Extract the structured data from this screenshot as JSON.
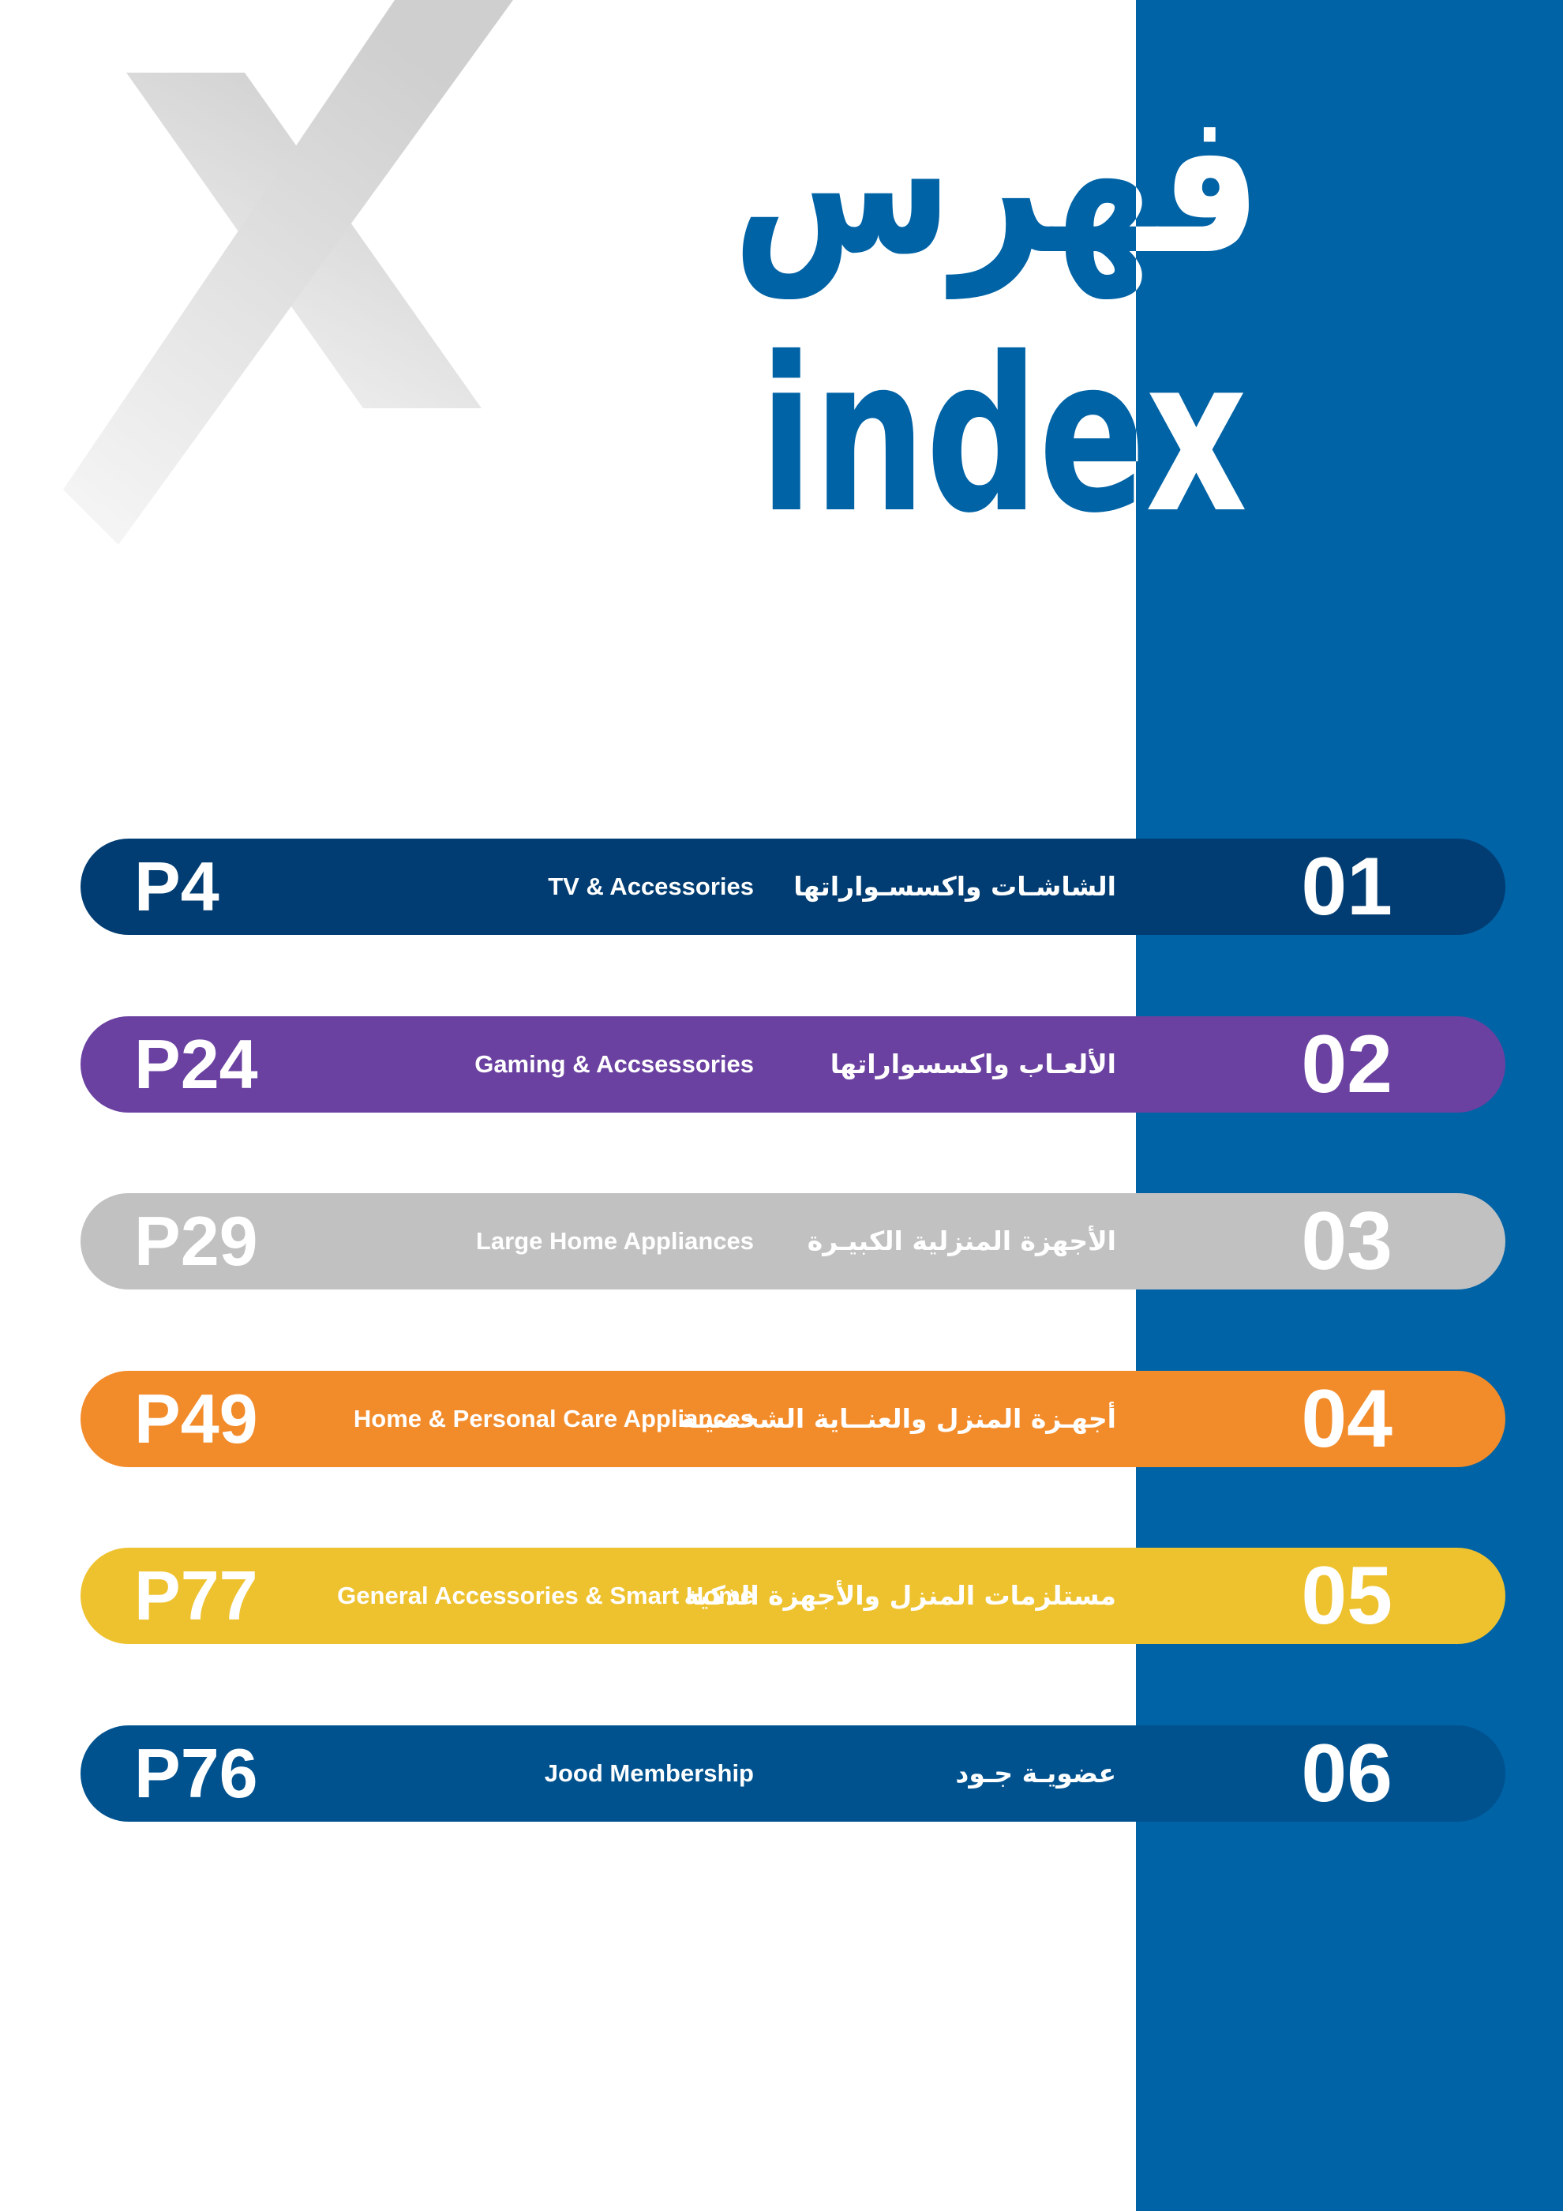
{
  "header": {
    "title_ar": "فهرس",
    "title_en": "index"
  },
  "items": [
    {
      "number": "01",
      "ar": "الشاشـات واكسسـواراتها",
      "en": "TV &  Accessories",
      "page": "P4",
      "color": "#013d72"
    },
    {
      "number": "02",
      "ar": "الألعـاب واكسسواراتها",
      "en": "Gaming & Accsessories",
      "page": "P24",
      "color": "#6a41a0"
    },
    {
      "number": "03",
      "ar": "الأجهزة المنزلية الكبيـرة",
      "en": "Large Home Appliances",
      "page": "P29",
      "color": "#c1c1c1"
    },
    {
      "number": "04",
      "ar": "أجهـزة المنزل والعنــاية الشخصيـة",
      "en": "Home & Personal Care Appliances",
      "page": "P49",
      "color": "#f28b2a"
    },
    {
      "number": "05",
      "ar": "مستلزمات المنزل والأجهزة الذكية",
      "en": "General Accessories & Smart Home",
      "page": "P77",
      "color": "#eec22f"
    },
    {
      "number": "06",
      "ar": "عضويـة جـود",
      "en": "Jood Membership",
      "page": "P76",
      "color": "#00528f"
    }
  ]
}
